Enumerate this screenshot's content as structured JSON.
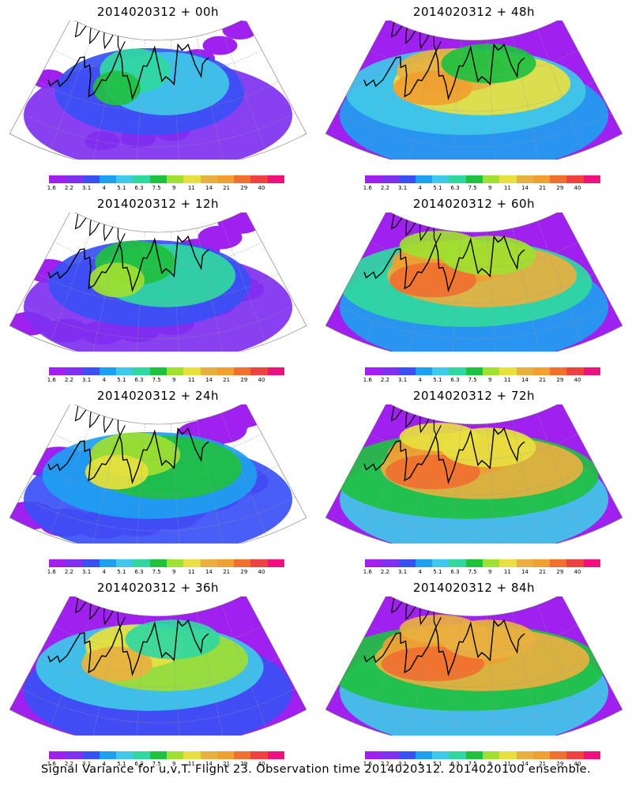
{
  "panels": [
    {
      "title": "2014020312 + 00h",
      "lead_hours": 0
    },
    {
      "title": "2014020312 + 48h",
      "lead_hours": 48
    },
    {
      "title": "2014020312 + 12h",
      "lead_hours": 12
    },
    {
      "title": "2014020312 + 60h",
      "lead_hours": 60
    },
    {
      "title": "2014020312 + 24h",
      "lead_hours": 24
    },
    {
      "title": "2014020312 + 72h",
      "lead_hours": 72
    },
    {
      "title": "2014020312 + 36h",
      "lead_hours": 36
    },
    {
      "title": "2014020312 + 84h",
      "lead_hours": 84
    }
  ],
  "colorbar": {
    "labels": [
      "1.6",
      "2.2",
      "3.1",
      "4",
      "5.1",
      "6.3",
      "7.5",
      "9",
      "11",
      "14",
      "21",
      "29",
      "40"
    ],
    "colors": [
      "#a020f0",
      "#7f30f0",
      "#3a50f5",
      "#1ea0f0",
      "#40c8e8",
      "#30d8a0",
      "#20c040",
      "#a0e030",
      "#e8e040",
      "#e8b040",
      "#f0a030",
      "#f07030",
      "#f04040",
      "#f01080"
    ]
  },
  "footer": "Signal Variance for u,v,T. Flight 23. Observation time 2014020312. 2014020100 ensemble."
}
